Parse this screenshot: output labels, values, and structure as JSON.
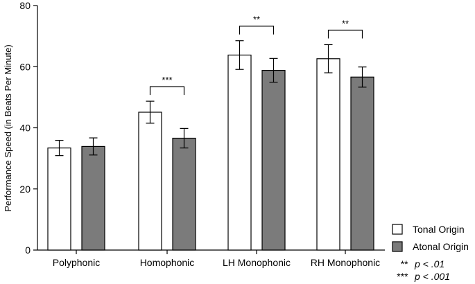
{
  "chart_data": {
    "type": "bar",
    "ylabel": "Performance Speed (in Beats Per Minute)",
    "xlabel": "",
    "ylim": [
      0,
      80
    ],
    "yticks": [
      0,
      20,
      40,
      60,
      80
    ],
    "categories": [
      "Polyphonic",
      "Homophonic",
      "LH Monophonic",
      "RH Monophonic"
    ],
    "series": [
      {
        "name": "Tonal Origin",
        "color": "#ffffff",
        "values": [
          33.4,
          45.1,
          63.8,
          62.6
        ],
        "error": [
          2.5,
          3.6,
          4.7,
          4.6
        ]
      },
      {
        "name": "Atonal Origin",
        "color": "#7b7b7b",
        "values": [
          33.9,
          36.6,
          58.8,
          56.6
        ],
        "error": [
          2.8,
          3.2,
          3.9,
          3.3
        ]
      }
    ],
    "significance": [
      {
        "category": "Homophonic",
        "label": "***"
      },
      {
        "category": "LH Monophonic",
        "label": "**"
      },
      {
        "category": "RH Monophonic",
        "label": "**"
      }
    ],
    "notes": [
      {
        "stars": "**",
        "text": "p < .01"
      },
      {
        "stars": "***",
        "text": "p < .001"
      }
    ],
    "legend_position": "bottom-right",
    "grid": false
  }
}
